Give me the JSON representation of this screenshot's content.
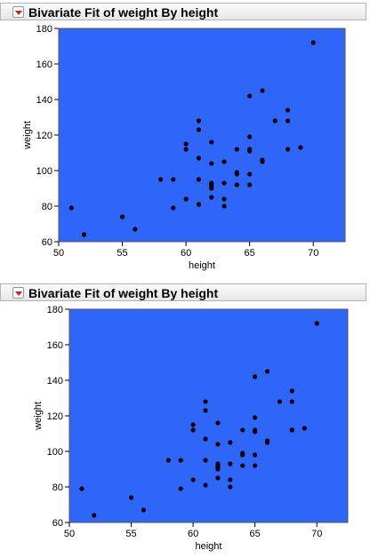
{
  "colors": {
    "plot_bg": "#2e66fa",
    "point": "#000000",
    "header_button": "#d61f1f"
  },
  "chart_data": [
    {
      "type": "scatter",
      "title": "Bivariate Fit of weight By height",
      "xlabel": "height",
      "ylabel": "weight",
      "xlim": [
        50,
        72.5
      ],
      "ylim": [
        60,
        180
      ],
      "xticks": [
        50,
        55,
        60,
        65,
        70
      ],
      "yticks": [
        60,
        80,
        100,
        120,
        140,
        160,
        180
      ],
      "grid": false,
      "legend": "none",
      "x": [
        51,
        52,
        55,
        56,
        58,
        59,
        59,
        60,
        60,
        60,
        61,
        61,
        61,
        61,
        61,
        62,
        62,
        62,
        62,
        62,
        62,
        62,
        63,
        63,
        63,
        63,
        64,
        64,
        64,
        64,
        65,
        65,
        65,
        65,
        65,
        65,
        66,
        66,
        66,
        67,
        68,
        68,
        68,
        68,
        69,
        70
      ],
      "y": [
        79,
        64,
        74,
        67,
        95,
        95,
        79,
        115,
        112,
        84,
        128,
        123,
        107,
        95,
        81,
        116,
        104,
        92,
        91,
        85,
        90,
        93,
        105,
        93,
        84,
        80,
        112,
        99,
        92,
        98,
        142,
        119,
        112,
        111,
        98,
        92,
        145,
        106,
        105,
        128,
        134,
        128,
        112,
        112,
        113,
        172
      ]
    },
    {
      "type": "scatter",
      "title": "Bivariate Fit of weight By height",
      "xlabel": "height",
      "ylabel": "weight",
      "xlim": [
        50,
        72.5
      ],
      "ylim": [
        60,
        180
      ],
      "xticks": [
        50,
        55,
        60,
        65,
        70
      ],
      "yticks": [
        60,
        80,
        100,
        120,
        140,
        160,
        180
      ],
      "grid": false,
      "legend": "none",
      "x": [
        51,
        52,
        55,
        56,
        58,
        59,
        59,
        60,
        60,
        60,
        61,
        61,
        61,
        61,
        61,
        62,
        62,
        62,
        62,
        62,
        62,
        62,
        63,
        63,
        63,
        63,
        64,
        64,
        64,
        64,
        65,
        65,
        65,
        65,
        65,
        65,
        66,
        66,
        66,
        67,
        68,
        68,
        68,
        68,
        69,
        70
      ],
      "y": [
        79,
        64,
        74,
        67,
        95,
        95,
        79,
        115,
        112,
        84,
        128,
        123,
        107,
        95,
        81,
        116,
        104,
        92,
        91,
        85,
        90,
        93,
        105,
        93,
        84,
        80,
        112,
        99,
        92,
        98,
        142,
        119,
        112,
        111,
        98,
        92,
        145,
        106,
        105,
        128,
        134,
        128,
        112,
        112,
        113,
        172
      ]
    }
  ]
}
